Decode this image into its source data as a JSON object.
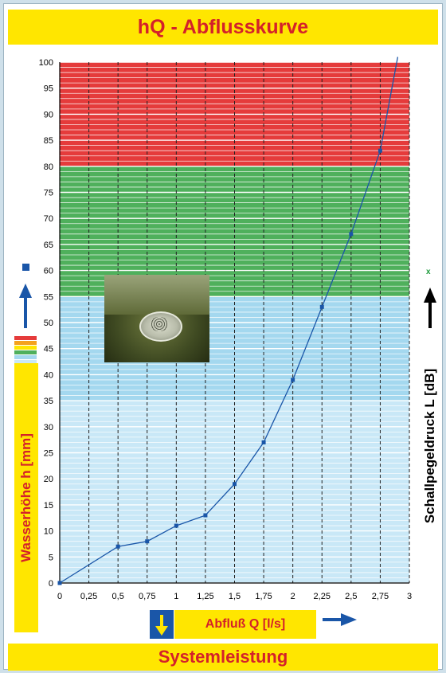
{
  "title": "hQ - Abflusskurve",
  "footer": "Systemleistung",
  "y_axis_label": "Wasserhöhe h [mm]",
  "x_axis_label": "Abfluß Q [l/s]",
  "right_axis_label": "Schallpegeldruck L [dB]",
  "right_axis_marker": "x",
  "colors": {
    "banner_bg": "#ffe600",
    "banner_text": "#d4212a",
    "zone_red": "#e53b3b",
    "zone_green": "#4fb05c",
    "zone_blue_upper": "#a4d8ef",
    "zone_blue_lower": "#c9e8f7",
    "curve": "#1a56a8",
    "arrow": "#1a56a8"
  },
  "icons": [
    "up-arrow-icon",
    "right-arrow-icon",
    "down-arrow-icon",
    "drain-photo"
  ],
  "chart_data": {
    "type": "line",
    "title": "hQ - Abflusskurve",
    "xlabel": "Abfluß Q [l/s]",
    "ylabel": "Wasserhöhe h [mm]",
    "xlim": [
      0,
      3
    ],
    "ylim": [
      0,
      100
    ],
    "x_ticks": [
      "0",
      "0,25",
      "0,5",
      "0,75",
      "1",
      "1,25",
      "1,5",
      "1,75",
      "2",
      "2,25",
      "2,5",
      "2,75",
      "3"
    ],
    "y_ticks": [
      "0",
      "5",
      "10",
      "15",
      "20",
      "25",
      "30",
      "35",
      "40",
      "45",
      "50",
      "55",
      "60",
      "65",
      "70",
      "75",
      "80",
      "85",
      "90",
      "95",
      "100"
    ],
    "grid": true,
    "zones": [
      {
        "from": 80,
        "to": 100,
        "color": "#e53b3b"
      },
      {
        "from": 55,
        "to": 80,
        "color": "#4fb05c"
      },
      {
        "from": 35,
        "to": 55,
        "color": "#a4d8ef"
      },
      {
        "from": 0,
        "to": 35,
        "color": "#c9e8f7"
      }
    ],
    "series": [
      {
        "x": [
          0,
          0.5,
          0.75,
          1,
          1.25,
          1.5,
          1.75,
          2,
          2.25,
          2.5,
          2.75
        ],
        "y": [
          0,
          7,
          8,
          11,
          13,
          19,
          27,
          39,
          53,
          67,
          83
        ]
      }
    ],
    "curve_extension": {
      "x": [
        2.75,
        2.9
      ],
      "y": [
        83,
        101
      ]
    }
  }
}
